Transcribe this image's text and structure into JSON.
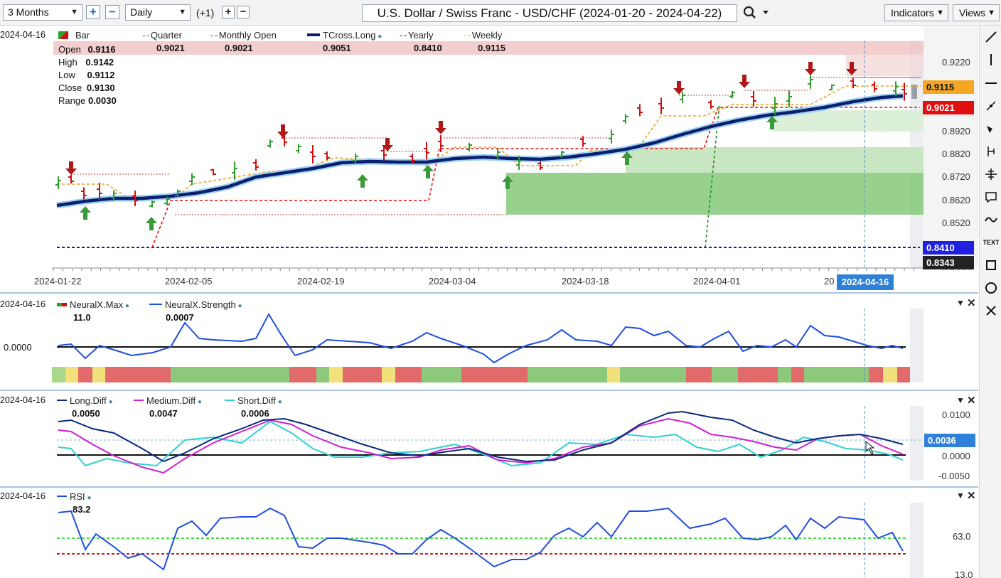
{
  "toolbar": {
    "range": "3 Months",
    "interval": "Daily",
    "offset": "(+1)",
    "title": "U.S. Dollar / Swiss Franc - USD/CHF (2024-01-20 - 2024-04-22)",
    "indicators": "Indicators",
    "views": "Views"
  },
  "price_pane": {
    "date": "2024-04-16",
    "ohlc": {
      "open_label": "Open",
      "open": "0.9116",
      "high_label": "High",
      "high": "0.9142",
      "low_label": "Low",
      "low": "0.9112",
      "close_label": "Close",
      "close": "0.9130",
      "range_label": "Range",
      "range": "0.0030"
    },
    "legend": [
      {
        "name": "Bar",
        "value": "",
        "color": "#2f9e2f"
      },
      {
        "name": "Quarter",
        "value": "0.9021",
        "color": "#2a8a2a"
      },
      {
        "name": "Monthly Open",
        "value": "0.9021",
        "color": "#e01010"
      },
      {
        "name": "TCross.Long",
        "value": "0.9051",
        "color": "#0a1f6e"
      },
      {
        "name": "Yearly",
        "value": "0.8410",
        "color": "#1515d0"
      },
      {
        "name": "Weekly",
        "value": "0.9115",
        "color": "#f0a020"
      }
    ],
    "axis": [
      "0.9220",
      "0.8920",
      "0.8820",
      "0.8720",
      "0.8620",
      "0.8520"
    ],
    "tags": {
      "weekly": "0.9115",
      "monthly": "0.9021",
      "yearly": "0.8410",
      "low": "0.8343",
      "cut": "0.8320"
    },
    "dates": [
      "2024-01-22",
      "2024-02-05",
      "2024-02-19",
      "2024-03-04",
      "2024-03-18",
      "2024-04-01",
      "20"
    ],
    "cursor_date": "2024-04-16"
  },
  "neuralx_pane": {
    "date": "2024-04-16",
    "legend": [
      {
        "name": "NeuralX.Max",
        "value": "11.0"
      },
      {
        "name": "NeuralX.Strength",
        "value": "0.0007"
      }
    ],
    "zero": "0.0000"
  },
  "diff_pane": {
    "date": "2024-04-16",
    "legend": [
      {
        "name": "Long.Diff",
        "value": "0.0050",
        "color": "#0a2a7a"
      },
      {
        "name": "Medium.Diff",
        "value": "0.0047",
        "color": "#d020d0"
      },
      {
        "name": "Short.Diff",
        "value": "0.0006",
        "color": "#30d0d0"
      }
    ],
    "axis": [
      "0.0100",
      "0.0000",
      "-0.0050"
    ],
    "tag": "0.0036"
  },
  "rsi_pane": {
    "date": "2024-04-16",
    "legend": [
      {
        "name": "RSI",
        "value": "83.2"
      }
    ],
    "axis": [
      "63.0",
      "13.0"
    ]
  },
  "right_tools": [
    "line-tool",
    "vertical-line-tool",
    "horizontal-line-tool",
    "pointer-tool",
    "brush-tool",
    "measure-tool",
    "crosshair-tool",
    "note-tool",
    "wave-tool",
    "text-tool",
    "rectangle-tool",
    "ellipse-tool",
    "close-tool"
  ],
  "right_tool_text": "TEXT"
}
